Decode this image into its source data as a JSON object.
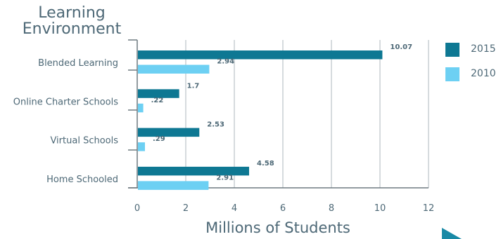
{
  "heading": "Learning Environment",
  "chart_data": {
    "type": "bar",
    "orientation": "horizontal",
    "categories": [
      "Blended Learning",
      "Online Charter Schools",
      "Virtual Schools",
      "Home Schooled"
    ],
    "series": [
      {
        "name": "2015",
        "color": "#0e7893",
        "values": [
          10.07,
          1.7,
          2.53,
          4.58
        ],
        "labels": [
          "10.07",
          "1.7",
          "2.53",
          "4.58"
        ]
      },
      {
        "name": "2010",
        "color": "#6dd0f3",
        "values": [
          2.94,
          0.22,
          0.29,
          2.91
        ],
        "labels": [
          "2.94",
          ".22",
          ".29",
          "2.91"
        ]
      }
    ],
    "xlabel": "Millions of Students",
    "xlim": [
      0,
      12
    ],
    "xticks": [
      "0",
      "2",
      "4",
      "6",
      "8",
      "10",
      "12"
    ],
    "grid": true,
    "legend": "top-right"
  }
}
